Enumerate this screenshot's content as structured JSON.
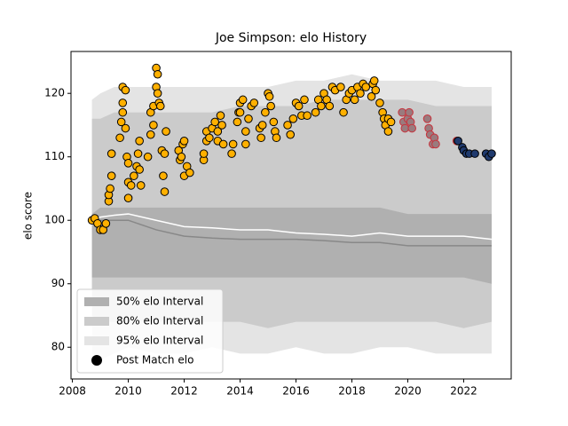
{
  "chart_data": {
    "type": "scatter",
    "title": "Joe Simpson: elo History",
    "ylabel": "elo score",
    "xlim": [
      2007.95,
      2023.7
    ],
    "ylim": [
      75,
      126.6
    ],
    "xticks": [
      2008,
      2010,
      2012,
      2014,
      2016,
      2018,
      2020,
      2022
    ],
    "yticks": [
      80,
      90,
      100,
      110,
      120
    ],
    "legend": "lower left",
    "band_x": [
      2008.7,
      2009,
      2009.5,
      2010,
      2011,
      2012,
      2013,
      2014,
      2015,
      2016,
      2017,
      2018,
      2019,
      2020,
      2021,
      2022,
      2023
    ],
    "series": [
      {
        "name": "50% elo Interval",
        "color": "#b0b0b0",
        "upper": [
          101,
          102,
          102,
          102,
          102,
          102,
          102,
          102,
          102,
          102,
          102,
          102,
          102,
          101,
          101,
          101,
          101
        ],
        "lower": [
          91,
          91,
          91,
          91,
          91,
          91,
          91,
          91,
          91,
          91,
          91,
          91,
          91,
          91,
          91,
          91,
          90
        ]
      },
      {
        "name": "80% elo Interval",
        "color": "#cbcbcb",
        "upper": [
          116,
          116,
          117,
          117,
          117,
          117,
          117,
          118,
          118,
          118,
          119,
          119,
          119,
          119,
          118,
          118,
          118
        ],
        "lower": [
          85,
          84,
          84,
          84,
          84,
          84,
          84,
          84,
          83,
          84,
          84,
          84,
          84,
          84,
          84,
          83,
          84
        ]
      },
      {
        "name": "95% elo Interval",
        "color": "#e4e4e4",
        "upper": [
          119,
          120,
          121,
          121,
          121,
          121,
          121,
          121,
          121,
          122,
          122,
          123,
          122,
          122,
          122,
          121,
          121
        ],
        "lower": [
          79,
          78,
          79,
          80,
          79,
          79,
          80,
          79,
          79,
          80,
          79,
          79,
          80,
          80,
          79,
          79,
          79
        ]
      }
    ],
    "lines": [
      {
        "color": "#ffffff",
        "values": [
          100,
          100.5,
          100.8,
          101,
          100,
          99,
          98.8,
          98.5,
          98.5,
          98,
          97.8,
          97.5,
          98,
          97.5,
          97.5,
          97.5,
          97
        ]
      },
      {
        "color": "#888888",
        "values": [
          100,
          100,
          100,
          100,
          98.5,
          97.5,
          97.2,
          97,
          97,
          97,
          96.8,
          96.5,
          96.5,
          96,
          96,
          96,
          96
        ]
      }
    ],
    "points": {
      "name": "Post Match elo",
      "color": "#000000",
      "x": [
        2008.7,
        2008.8,
        2008.9,
        2009.0,
        2009.1,
        2009.2,
        2009.3,
        2009.3,
        2009.35,
        2009.4,
        2009.4,
        2009.7,
        2009.75,
        2009.8,
        2009.8,
        2009.8,
        2009.9,
        2009.9,
        2009.95,
        2010.0,
        2010.0,
        2010.0,
        2010.1,
        2010.2,
        2010.3,
        2010.35,
        2010.4,
        2010.4,
        2010.45,
        2010.7,
        2010.8,
        2010.8,
        2010.9,
        2010.9,
        2011.0,
        2011.0,
        2011.05,
        2011.05,
        2011.1,
        2011.15,
        2011.2,
        2011.25,
        2011.3,
        2011.3,
        2011.35,
        2011.8,
        2011.85,
        2011.9,
        2011.95,
        2012.0,
        2012.0,
        2012.1,
        2012.2,
        2012.7,
        2012.7,
        2012.8,
        2012.8,
        2012.9,
        2013.0,
        2013.1,
        2013.2,
        2013.2,
        2013.3,
        2013.35,
        2013.4,
        2013.7,
        2013.75,
        2013.9,
        2013.95,
        2014.0,
        2014.0,
        2014.1,
        2014.2,
        2014.2,
        2014.3,
        2014.4,
        2014.5,
        2014.7,
        2014.75,
        2014.8,
        2014.9,
        2015.0,
        2015.05,
        2015.1,
        2015.2,
        2015.25,
        2015.3,
        2015.7,
        2015.8,
        2015.9,
        2016.0,
        2016.1,
        2016.2,
        2016.3,
        2016.4,
        2016.7,
        2016.8,
        2016.9,
        2017.0,
        2017.1,
        2017.2,
        2017.3,
        2017.4,
        2017.6,
        2017.7,
        2017.8,
        2017.9,
        2018.0,
        2018.1,
        2018.2,
        2018.3,
        2018.4,
        2018.5,
        2018.7,
        2018.75,
        2018.8,
        2018.85,
        2019.0,
        2019.1,
        2019.15,
        2019.2,
        2019.3,
        2019.3,
        2019.4,
        2019.8,
        2019.85,
        2019.9,
        2020.0,
        2020.05,
        2020.1,
        2020.15,
        2020.7,
        2020.75,
        2020.8,
        2020.9,
        2020.95,
        2021.0,
        2021.75,
        2021.8,
        2021.95,
        2022.0,
        2022.1,
        2022.2,
        2022.4,
        2022.8,
        2022.9,
        2023.0
      ],
      "values": [
        100,
        100.3,
        99.5,
        98.5,
        98.5,
        99.5,
        103,
        104,
        105,
        107,
        110.5,
        113,
        115.5,
        118.5,
        117,
        121,
        120.5,
        114.5,
        110,
        109,
        106,
        103.5,
        105.5,
        107,
        108.5,
        110.5,
        112.5,
        108,
        105.5,
        110,
        113.5,
        117,
        115,
        118,
        121,
        124,
        123,
        120,
        118.5,
        118,
        111,
        107,
        104.5,
        110.5,
        114,
        111,
        109.5,
        110,
        112,
        112.5,
        107,
        108.5,
        107.5,
        109.5,
        110.5,
        112.5,
        114,
        113,
        114.5,
        115.5,
        114,
        112.5,
        116.5,
        115,
        112,
        110.5,
        112,
        115.5,
        117,
        118.5,
        117,
        119,
        114,
        112,
        116,
        118,
        118.5,
        114.5,
        113,
        115,
        117,
        120,
        119.5,
        118,
        115.5,
        114,
        113,
        115,
        113.5,
        116,
        118.5,
        118,
        116.5,
        119,
        116.5,
        117,
        119,
        118,
        120,
        119,
        118,
        121,
        120.5,
        121,
        117,
        119,
        120,
        120.5,
        119,
        121,
        120,
        121.5,
        121,
        119.5,
        121.5,
        122,
        120.5,
        118.5,
        117,
        116,
        115,
        116,
        114,
        115.5,
        117,
        115.5,
        114.5,
        116,
        117,
        115.5,
        114.5,
        116,
        114.5,
        113.5,
        112,
        113,
        112,
        112.5,
        112.5,
        111.5,
        111,
        110.5,
        110.5,
        110.5,
        110.5,
        110,
        110.5
      ],
      "point_colors": [
        "#ffb000",
        "#ffb000",
        "#ffb000",
        "#ffb000",
        "#ffb000",
        "#ffb000",
        "#ffb000",
        "#ffb000",
        "#ffb000",
        "#ffb000",
        "#ffb000",
        "#ffb000",
        "#ffb000",
        "#ffb000",
        "#ffb000",
        "#ffb000",
        "#ffb000",
        "#ffb000",
        "#ffb000",
        "#ffb000",
        "#ffb000",
        "#ffb000",
        "#ffb000",
        "#ffb000",
        "#ffb000",
        "#ffb000",
        "#ffb000",
        "#ffb000",
        "#ffb000",
        "#ffb000",
        "#ffb000",
        "#ffb000",
        "#ffb000",
        "#ffb000",
        "#ffb000",
        "#ffb000",
        "#ffb000",
        "#ffb000",
        "#ffb000",
        "#ffb000",
        "#ffb000",
        "#ffb000",
        "#ffb000",
        "#ffb000",
        "#ffb000",
        "#ffb000",
        "#ffb000",
        "#ffb000",
        "#ffb000",
        "#ffb000",
        "#ffb000",
        "#ffb000",
        "#ffb000",
        "#ffb000",
        "#ffb000",
        "#ffb000",
        "#ffb000",
        "#ffb000",
        "#ffb000",
        "#ffb000",
        "#ffb000",
        "#ffb000",
        "#ffb000",
        "#ffb000",
        "#ffb000",
        "#ffb000",
        "#ffb000",
        "#ffb000",
        "#ffb000",
        "#ffb000",
        "#ffb000",
        "#ffb000",
        "#ffb000",
        "#ffb000",
        "#ffb000",
        "#ffb000",
        "#ffb000",
        "#ffb000",
        "#ffb000",
        "#ffb000",
        "#ffb000",
        "#ffb000",
        "#ffb000",
        "#ffb000",
        "#ffb000",
        "#ffb000",
        "#ffb000",
        "#ffb000",
        "#ffb000",
        "#ffb000",
        "#ffb000",
        "#ffb000",
        "#ffb000",
        "#ffb000",
        "#ffb000",
        "#ffb000",
        "#ffb000",
        "#ffb000",
        "#ffb000",
        "#ffb000",
        "#ffb000",
        "#ffb000",
        "#ffb000",
        "#ffb000",
        "#ffb000",
        "#ffb000",
        "#ffb000",
        "#ffb000",
        "#ffb000",
        "#ffb000",
        "#ffb000",
        "#ffb000",
        "#ffb000",
        "#ffb000",
        "#ffb000",
        "#ffb000",
        "#ffb000",
        "#ffb000",
        "#ffb000",
        "#ffb000",
        "#ffb000",
        "#ffb000",
        "#ffb000",
        "#ffb000",
        "#9a7b7e",
        "#9a7b7e",
        "#9a7b7e",
        "#9a7b7e",
        "#9a7b7e",
        "#9a7b7e",
        "#9a7b7e",
        "#9a7b7e",
        "#9a7b7e",
        "#9a7b7e",
        "#9a7b7e",
        "#9a7b7e",
        "#9a7b7e",
        "#5a3a3a",
        "#1f3a6e",
        "#1f3a6e",
        "#1f3a6e",
        "#1f3a6e",
        "#1f3a6e",
        "#1f3a6e",
        "#1f3a6e",
        "#1f3a6e",
        "#1f3a6e"
      ],
      "edge_colors": [
        "#000000",
        "#000000",
        "#000000",
        "#000000",
        "#000000",
        "#000000",
        "#000000",
        "#000000",
        "#000000",
        "#000000",
        "#000000",
        "#000000",
        "#000000",
        "#000000",
        "#000000",
        "#000000",
        "#000000",
        "#000000",
        "#000000",
        "#000000",
        "#000000",
        "#000000",
        "#000000",
        "#000000",
        "#000000",
        "#000000",
        "#000000",
        "#000000",
        "#000000",
        "#000000",
        "#000000",
        "#000000",
        "#000000",
        "#000000",
        "#000000",
        "#000000",
        "#000000",
        "#000000",
        "#000000",
        "#000000",
        "#000000",
        "#000000",
        "#000000",
        "#000000",
        "#000000",
        "#000000",
        "#000000",
        "#000000",
        "#000000",
        "#000000",
        "#000000",
        "#000000",
        "#000000",
        "#000000",
        "#000000",
        "#000000",
        "#000000",
        "#000000",
        "#000000",
        "#000000",
        "#000000",
        "#000000",
        "#000000",
        "#000000",
        "#000000",
        "#000000",
        "#000000",
        "#000000",
        "#000000",
        "#000000",
        "#000000",
        "#000000",
        "#000000",
        "#000000",
        "#000000",
        "#000000",
        "#000000",
        "#000000",
        "#000000",
        "#000000",
        "#000000",
        "#000000",
        "#000000",
        "#000000",
        "#000000",
        "#000000",
        "#000000",
        "#000000",
        "#000000",
        "#000000",
        "#000000",
        "#000000",
        "#000000",
        "#000000",
        "#000000",
        "#000000",
        "#000000",
        "#000000",
        "#000000",
        "#000000",
        "#000000",
        "#000000",
        "#000000",
        "#000000",
        "#000000",
        "#000000",
        "#000000",
        "#000000",
        "#000000",
        "#000000",
        "#000000",
        "#000000",
        "#000000",
        "#000000",
        "#000000",
        "#000000",
        "#000000",
        "#000000",
        "#000000",
        "#000000",
        "#000000",
        "#000000",
        "#000000",
        "#000000",
        "#c8323c",
        "#c8323c",
        "#c8323c",
        "#c8323c",
        "#c8323c",
        "#c8323c",
        "#c8323c",
        "#c8323c",
        "#c8323c",
        "#c8323c",
        "#c8323c",
        "#c8323c",
        "#c8323c",
        "#c8323c",
        "#000000",
        "#000000",
        "#000000",
        "#000000",
        "#000000",
        "#000000",
        "#000000",
        "#000000",
        "#000000"
      ]
    }
  }
}
